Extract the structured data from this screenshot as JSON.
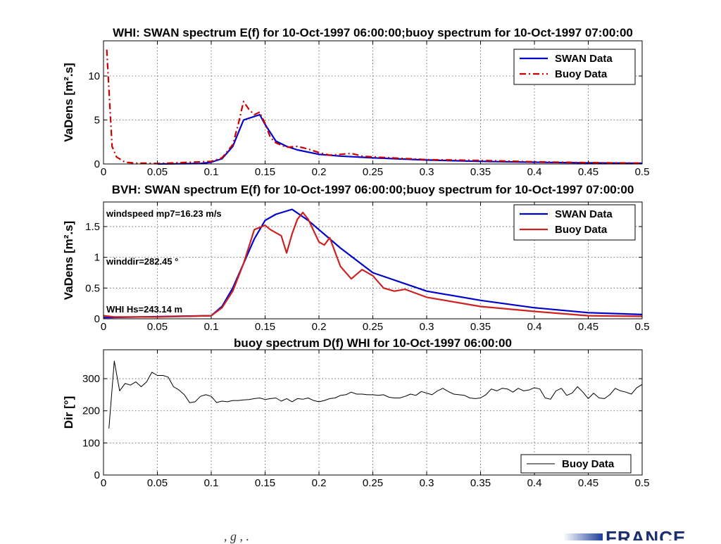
{
  "footer": {
    "logo_text": "FRANCE",
    "fragments": ",     g               ,     ."
  },
  "chart_data": [
    {
      "type": "line",
      "title": "WHI: SWAN spectrum E(f) for 10-Oct-1997 06:00:00;buoy spectrum for 10-Oct-1997 07:00:00",
      "xlabel": "",
      "ylabel": "VaDens [m².s]",
      "xlim": [
        0,
        0.5
      ],
      "ylim": [
        0,
        14
      ],
      "xticks": [
        "0",
        "0.05",
        "0.1",
        "0.15",
        "0.2",
        "0.25",
        "0.3",
        "0.35",
        "0.4",
        "0.45",
        "0.5"
      ],
      "yticks": [
        0,
        5,
        10
      ],
      "grid": true,
      "legend_position": "top-right",
      "series": [
        {
          "name": "SWAN Data",
          "color": "#0000cc",
          "style": "solid",
          "x": [
            0.05,
            0.09,
            0.1,
            0.11,
            0.12,
            0.13,
            0.145,
            0.15,
            0.16,
            0.17,
            0.18,
            0.2,
            0.22,
            0.25,
            0.3,
            0.35,
            0.4,
            0.45,
            0.5
          ],
          "y": [
            0,
            0.05,
            0.2,
            0.6,
            2.0,
            5.0,
            5.6,
            4.5,
            2.6,
            2.0,
            1.6,
            1.1,
            0.9,
            0.7,
            0.45,
            0.3,
            0.2,
            0.12,
            0.08
          ]
        },
        {
          "name": "Buoy Data",
          "color": "#cc0000",
          "style": "dashdot",
          "x": [
            0.003,
            0.008,
            0.012,
            0.02,
            0.03,
            0.04,
            0.05,
            0.1,
            0.11,
            0.12,
            0.125,
            0.13,
            0.135,
            0.14,
            0.145,
            0.15,
            0.155,
            0.16,
            0.17,
            0.18,
            0.19,
            0.2,
            0.21,
            0.22,
            0.23,
            0.24,
            0.25,
            0.3,
            0.35,
            0.4,
            0.45,
            0.5
          ],
          "y": [
            13,
            2.0,
            0.8,
            0.2,
            0.1,
            0.1,
            0.05,
            0.3,
            0.7,
            2.2,
            4.5,
            7.1,
            6.2,
            5.6,
            5.9,
            4.6,
            3.0,
            2.4,
            1.9,
            2.0,
            1.7,
            1.3,
            1.0,
            1.1,
            1.2,
            0.9,
            0.8,
            0.5,
            0.4,
            0.25,
            0.15,
            0.1
          ]
        }
      ]
    },
    {
      "type": "line",
      "title": "BVH: SWAN spectrum E(f) for 10-Oct-1997 06:00:00;buoy spectrum for 10-Oct-1997 07:00:00",
      "xlabel": "",
      "ylabel": "VaDens [m².s]",
      "xlim": [
        0,
        0.5
      ],
      "ylim": [
        0,
        1.9
      ],
      "xticks": [
        "0",
        "0.05",
        "0.1",
        "0.15",
        "0.2",
        "0.25",
        "0.3",
        "0.35",
        "0.4",
        "0.45",
        "0.5"
      ],
      "yticks": [
        0,
        0.5,
        1,
        1.5
      ],
      "grid": true,
      "legend_position": "top-right",
      "annotations": [
        "windspeed mp7=16.23 m/s",
        "winddir=282.45 °",
        "WHI Hs=243.14 m"
      ],
      "series": [
        {
          "name": "SWAN Data",
          "color": "#0000cc",
          "style": "solid",
          "x": [
            0,
            0.1,
            0.11,
            0.12,
            0.13,
            0.14,
            0.15,
            0.16,
            0.175,
            0.19,
            0.2,
            0.22,
            0.25,
            0.3,
            0.35,
            0.4,
            0.45,
            0.5
          ],
          "y": [
            0.02,
            0.05,
            0.2,
            0.5,
            0.9,
            1.3,
            1.6,
            1.7,
            1.78,
            1.6,
            1.45,
            1.15,
            0.75,
            0.45,
            0.3,
            0.18,
            0.1,
            0.07
          ]
        },
        {
          "name": "Buoy Data",
          "color": "#cc2222",
          "style": "solid",
          "x": [
            0,
            0.01,
            0.05,
            0.1,
            0.11,
            0.12,
            0.13,
            0.14,
            0.15,
            0.155,
            0.16,
            0.165,
            0.17,
            0.175,
            0.18,
            0.185,
            0.19,
            0.2,
            0.205,
            0.21,
            0.22,
            0.23,
            0.24,
            0.25,
            0.26,
            0.27,
            0.28,
            0.3,
            0.35,
            0.4,
            0.45,
            0.5
          ],
          "y": [
            0.05,
            0.03,
            0.03,
            0.05,
            0.18,
            0.45,
            0.9,
            1.45,
            1.52,
            1.45,
            1.4,
            1.35,
            1.07,
            1.38,
            1.62,
            1.73,
            1.62,
            1.25,
            1.2,
            1.32,
            0.85,
            0.65,
            0.8,
            0.7,
            0.5,
            0.45,
            0.48,
            0.35,
            0.2,
            0.12,
            0.05,
            0.04
          ]
        }
      ]
    },
    {
      "type": "line",
      "title": "buoy spectrum D(f) WHI for 10-Oct-1997 06:00:00",
      "xlabel": "",
      "ylabel": "Dir [°]",
      "xlim": [
        0,
        0.5
      ],
      "ylim": [
        0,
        390
      ],
      "xticks": [
        "0",
        "0.05",
        "0.1",
        "0.15",
        "0.2",
        "0.25",
        "0.3",
        "0.35",
        "0.4",
        "0.45",
        "0.5"
      ],
      "yticks": [
        0,
        100,
        200,
        300
      ],
      "grid": true,
      "legend_position": "bottom-right",
      "series": [
        {
          "name": "Buoy Data",
          "color": "#000000",
          "style": "solid",
          "x": [
            0.005,
            0.01,
            0.015,
            0.02,
            0.025,
            0.03,
            0.035,
            0.04,
            0.045,
            0.05,
            0.055,
            0.06,
            0.065,
            0.07,
            0.075,
            0.08,
            0.085,
            0.09,
            0.095,
            0.1,
            0.105,
            0.11,
            0.115,
            0.12,
            0.125,
            0.13,
            0.135,
            0.14,
            0.145,
            0.15,
            0.155,
            0.16,
            0.165,
            0.17,
            0.175,
            0.18,
            0.185,
            0.19,
            0.195,
            0.2,
            0.205,
            0.21,
            0.215,
            0.22,
            0.225,
            0.23,
            0.235,
            0.24,
            0.245,
            0.25,
            0.255,
            0.26,
            0.265,
            0.27,
            0.275,
            0.28,
            0.285,
            0.29,
            0.295,
            0.3,
            0.305,
            0.31,
            0.315,
            0.32,
            0.325,
            0.33,
            0.335,
            0.34,
            0.345,
            0.35,
            0.355,
            0.36,
            0.365,
            0.37,
            0.375,
            0.38,
            0.385,
            0.39,
            0.395,
            0.4,
            0.405,
            0.41,
            0.415,
            0.42,
            0.425,
            0.43,
            0.435,
            0.44,
            0.445,
            0.45,
            0.455,
            0.46,
            0.465,
            0.47,
            0.475,
            0.48,
            0.485,
            0.49,
            0.495,
            0.5
          ],
          "y": [
            145,
            355,
            262,
            285,
            280,
            290,
            275,
            290,
            320,
            310,
            310,
            305,
            275,
            265,
            250,
            225,
            228,
            245,
            250,
            245,
            226,
            230,
            228,
            232,
            232,
            234,
            235,
            238,
            240,
            235,
            238,
            240,
            230,
            238,
            228,
            238,
            236,
            240,
            232,
            228,
            232,
            238,
            240,
            248,
            250,
            258,
            252,
            252,
            250,
            250,
            248,
            250,
            242,
            240,
            240,
            245,
            252,
            248,
            260,
            255,
            250,
            262,
            270,
            260,
            252,
            250,
            248,
            240,
            238,
            240,
            250,
            268,
            262,
            270,
            268,
            258,
            270,
            262,
            265,
            272,
            268,
            240,
            236,
            262,
            270,
            248,
            255,
            275,
            258,
            238,
            255,
            240,
            238,
            250,
            270,
            262,
            258,
            252,
            272,
            282
          ]
        }
      ]
    }
  ]
}
